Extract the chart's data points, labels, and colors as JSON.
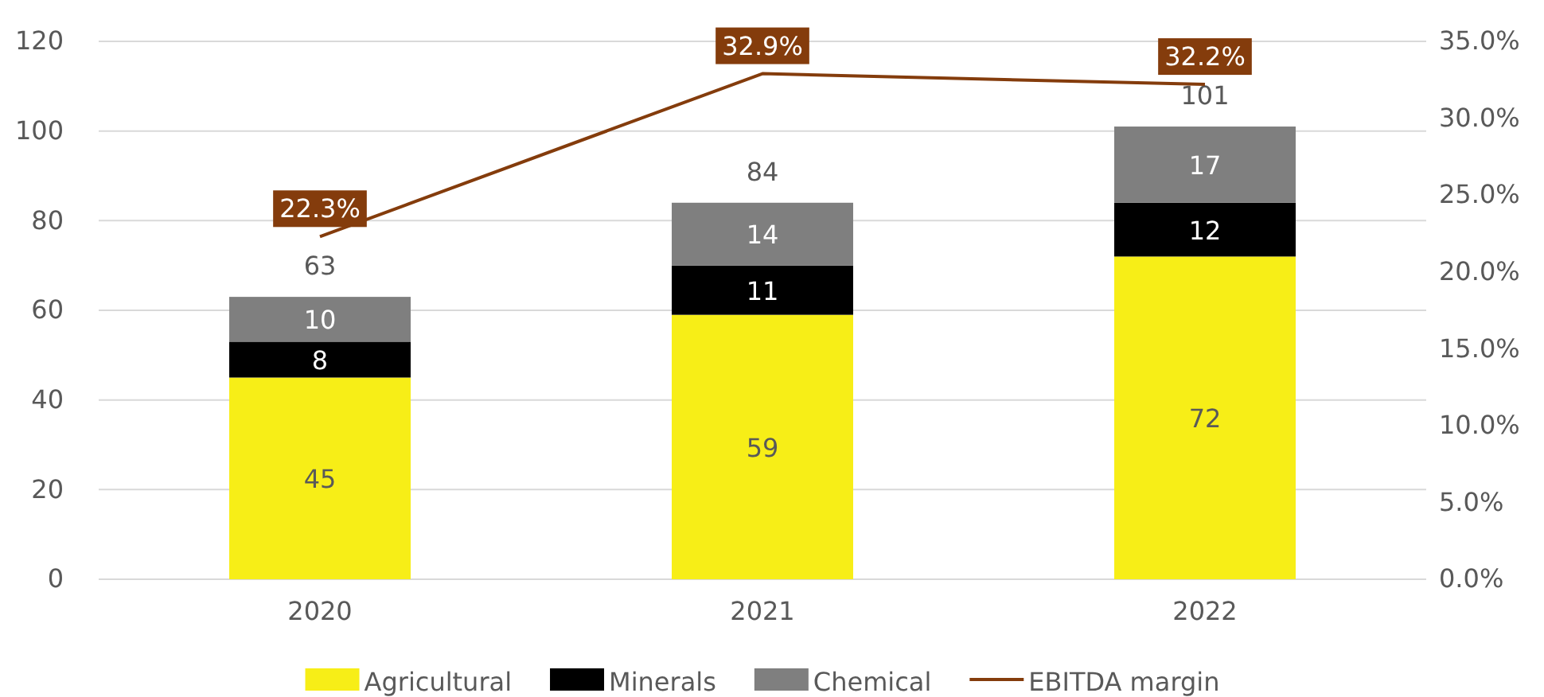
{
  "chart_data": {
    "type": "bar",
    "stacked": true,
    "categories": [
      "2020",
      "2021",
      "2022"
    ],
    "series": [
      {
        "name": "Agricultural",
        "color": "#f7ee17",
        "values": [
          45,
          59,
          72
        ]
      },
      {
        "name": "Minerals",
        "color": "#000000",
        "values": [
          8,
          11,
          12
        ]
      },
      {
        "name": "Chemical",
        "color": "#7f7f7f",
        "values": [
          10,
          14,
          17
        ]
      },
      {
        "name": "EBITDA margin",
        "type": "line",
        "axis": "y2",
        "color": "#843c0c",
        "values": [
          22.3,
          32.9,
          32.2
        ],
        "value_labels": [
          "22.3%",
          "32.9%",
          "32.2%"
        ]
      }
    ],
    "totals": [
      "63",
      "84",
      "101"
    ],
    "data_labels": true,
    "ylim": [
      0,
      120
    ],
    "yticks": [
      0,
      20,
      40,
      60,
      80,
      100,
      120
    ],
    "y2lim": [
      0,
      35
    ],
    "y2ticks": [
      {
        "value": 0,
        "label": "0.0%"
      },
      {
        "value": 5,
        "label": "5.0%"
      },
      {
        "value": 10,
        "label": "10.0%"
      },
      {
        "value": 15,
        "label": "15.0%"
      },
      {
        "value": 20,
        "label": "20.0%"
      },
      {
        "value": 25,
        "label": "25.0%"
      },
      {
        "value": 30,
        "label": "30.0%"
      },
      {
        "value": 35,
        "label": "35.0%"
      }
    ],
    "grid": "y",
    "legend": "bottom"
  }
}
